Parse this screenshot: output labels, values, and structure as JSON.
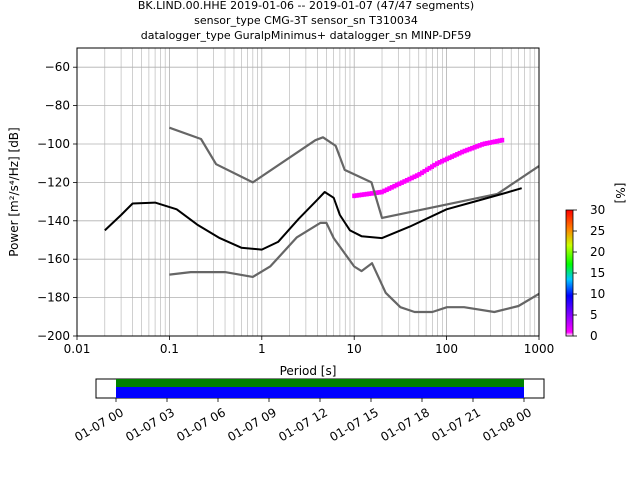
{
  "chart_data": {
    "type": "heatmap",
    "title_lines": [
      "BK.LIND.00.HHE   2019-01-06 -- 2019-01-07  (47/47 segments)",
      "sensor_type CMG-3T sensor_sn T310034",
      "datalogger_type GuralpMinimus+ datalogger_sn MINP-DF59"
    ],
    "xlabel": "Period [s]",
    "ylabel": "Power [m²/s⁴/Hz] [dB]",
    "xscale": "log",
    "xlim": [
      0.01,
      1000
    ],
    "ylim": [
      -200,
      -50
    ],
    "grid": true,
    "x_ticks": [
      0.01,
      0.1,
      1,
      10,
      100,
      1000
    ],
    "x_tick_labels": [
      "0.01",
      "0.1",
      "1",
      "10",
      "100",
      "1000"
    ],
    "y_ticks": [
      -200,
      -180,
      -160,
      -140,
      -120,
      -100,
      -80,
      -60
    ],
    "y_tick_labels": [
      "−200",
      "−180",
      "−160",
      "−140",
      "−120",
      "−100",
      "−80",
      "−60"
    ],
    "colorbar": {
      "label": "[%]",
      "range": [
        0,
        30
      ],
      "ticks": [
        0,
        5,
        10,
        15,
        20,
        25,
        30
      ],
      "tick_labels": [
        "0",
        "5",
        "10",
        "15",
        "20",
        "25",
        "30"
      ]
    },
    "noise_models": [
      {
        "id": "nhnm",
        "color": "#666666",
        "points": [
          [
            0.1,
            -91.5
          ],
          [
            0.22,
            -97.4
          ],
          [
            0.32,
            -110.5
          ],
          [
            0.8,
            -120
          ],
          [
            3.8,
            -98
          ],
          [
            4.6,
            -96.5
          ],
          [
            6.3,
            -101
          ],
          [
            7.9,
            -113.5
          ],
          [
            15.4,
            -120
          ],
          [
            20,
            -138.5
          ],
          [
            354.8,
            -126
          ],
          [
            1000,
            -111.5
          ]
        ]
      },
      {
        "id": "nlnm",
        "color": "#666666",
        "points": [
          [
            0.1,
            -168
          ],
          [
            0.17,
            -166.7
          ],
          [
            0.4,
            -166.7
          ],
          [
            0.8,
            -169.2
          ],
          [
            1.24,
            -163.7
          ],
          [
            2.4,
            -148.6
          ],
          [
            4.3,
            -141.1
          ],
          [
            5,
            -141.1
          ],
          [
            6,
            -149
          ],
          [
            10,
            -163.8
          ],
          [
            12,
            -166.2
          ],
          [
            15.6,
            -162.1
          ],
          [
            21.9,
            -177.5
          ],
          [
            31.6,
            -185
          ],
          [
            45,
            -187.5
          ],
          [
            70,
            -187.5
          ],
          [
            101,
            -185
          ],
          [
            154.5,
            -185
          ],
          [
            328.6,
            -187.5
          ],
          [
            600,
            -184.4
          ],
          [
            1000,
            -178
          ]
        ]
      },
      {
        "id": "mode",
        "color": "#000000",
        "points": [
          [
            0.02,
            -145
          ],
          [
            0.03,
            -137
          ],
          [
            0.04,
            -131
          ],
          [
            0.07,
            -130.5
          ],
          [
            0.12,
            -134
          ],
          [
            0.2,
            -142
          ],
          [
            0.35,
            -149
          ],
          [
            0.6,
            -154
          ],
          [
            1.0,
            -155
          ],
          [
            1.5,
            -151
          ],
          [
            2.5,
            -139
          ],
          [
            4.0,
            -129
          ],
          [
            4.8,
            -125
          ],
          [
            6.0,
            -128
          ],
          [
            7.0,
            -137
          ],
          [
            9.0,
            -145
          ],
          [
            12.0,
            -148
          ],
          [
            20.0,
            -149
          ],
          [
            40.0,
            -143
          ],
          [
            100.0,
            -134
          ],
          [
            200.0,
            -130
          ],
          [
            400.0,
            -126
          ],
          [
            650.0,
            -123
          ]
        ]
      }
    ],
    "ppsd_bands": [
      {
        "id": "upper-magenta-branch",
        "color": "#ff00ff",
        "points": [
          [
            10,
            -127
          ],
          [
            20,
            -125
          ],
          [
            30,
            -121
          ],
          [
            50,
            -116
          ],
          [
            80,
            -110
          ],
          [
            150,
            -104
          ],
          [
            250,
            -100
          ],
          [
            400,
            -98
          ]
        ]
      }
    ],
    "timeline": {
      "tick_labels": [
        "01-07 00",
        "01-07 03",
        "01-07 06",
        "01-07 09",
        "01-07 12",
        "01-07 15",
        "01-07 18",
        "01-07 21",
        "01-08 00"
      ],
      "coverage_color": "#0000ff",
      "data_color": "#008000"
    }
  }
}
